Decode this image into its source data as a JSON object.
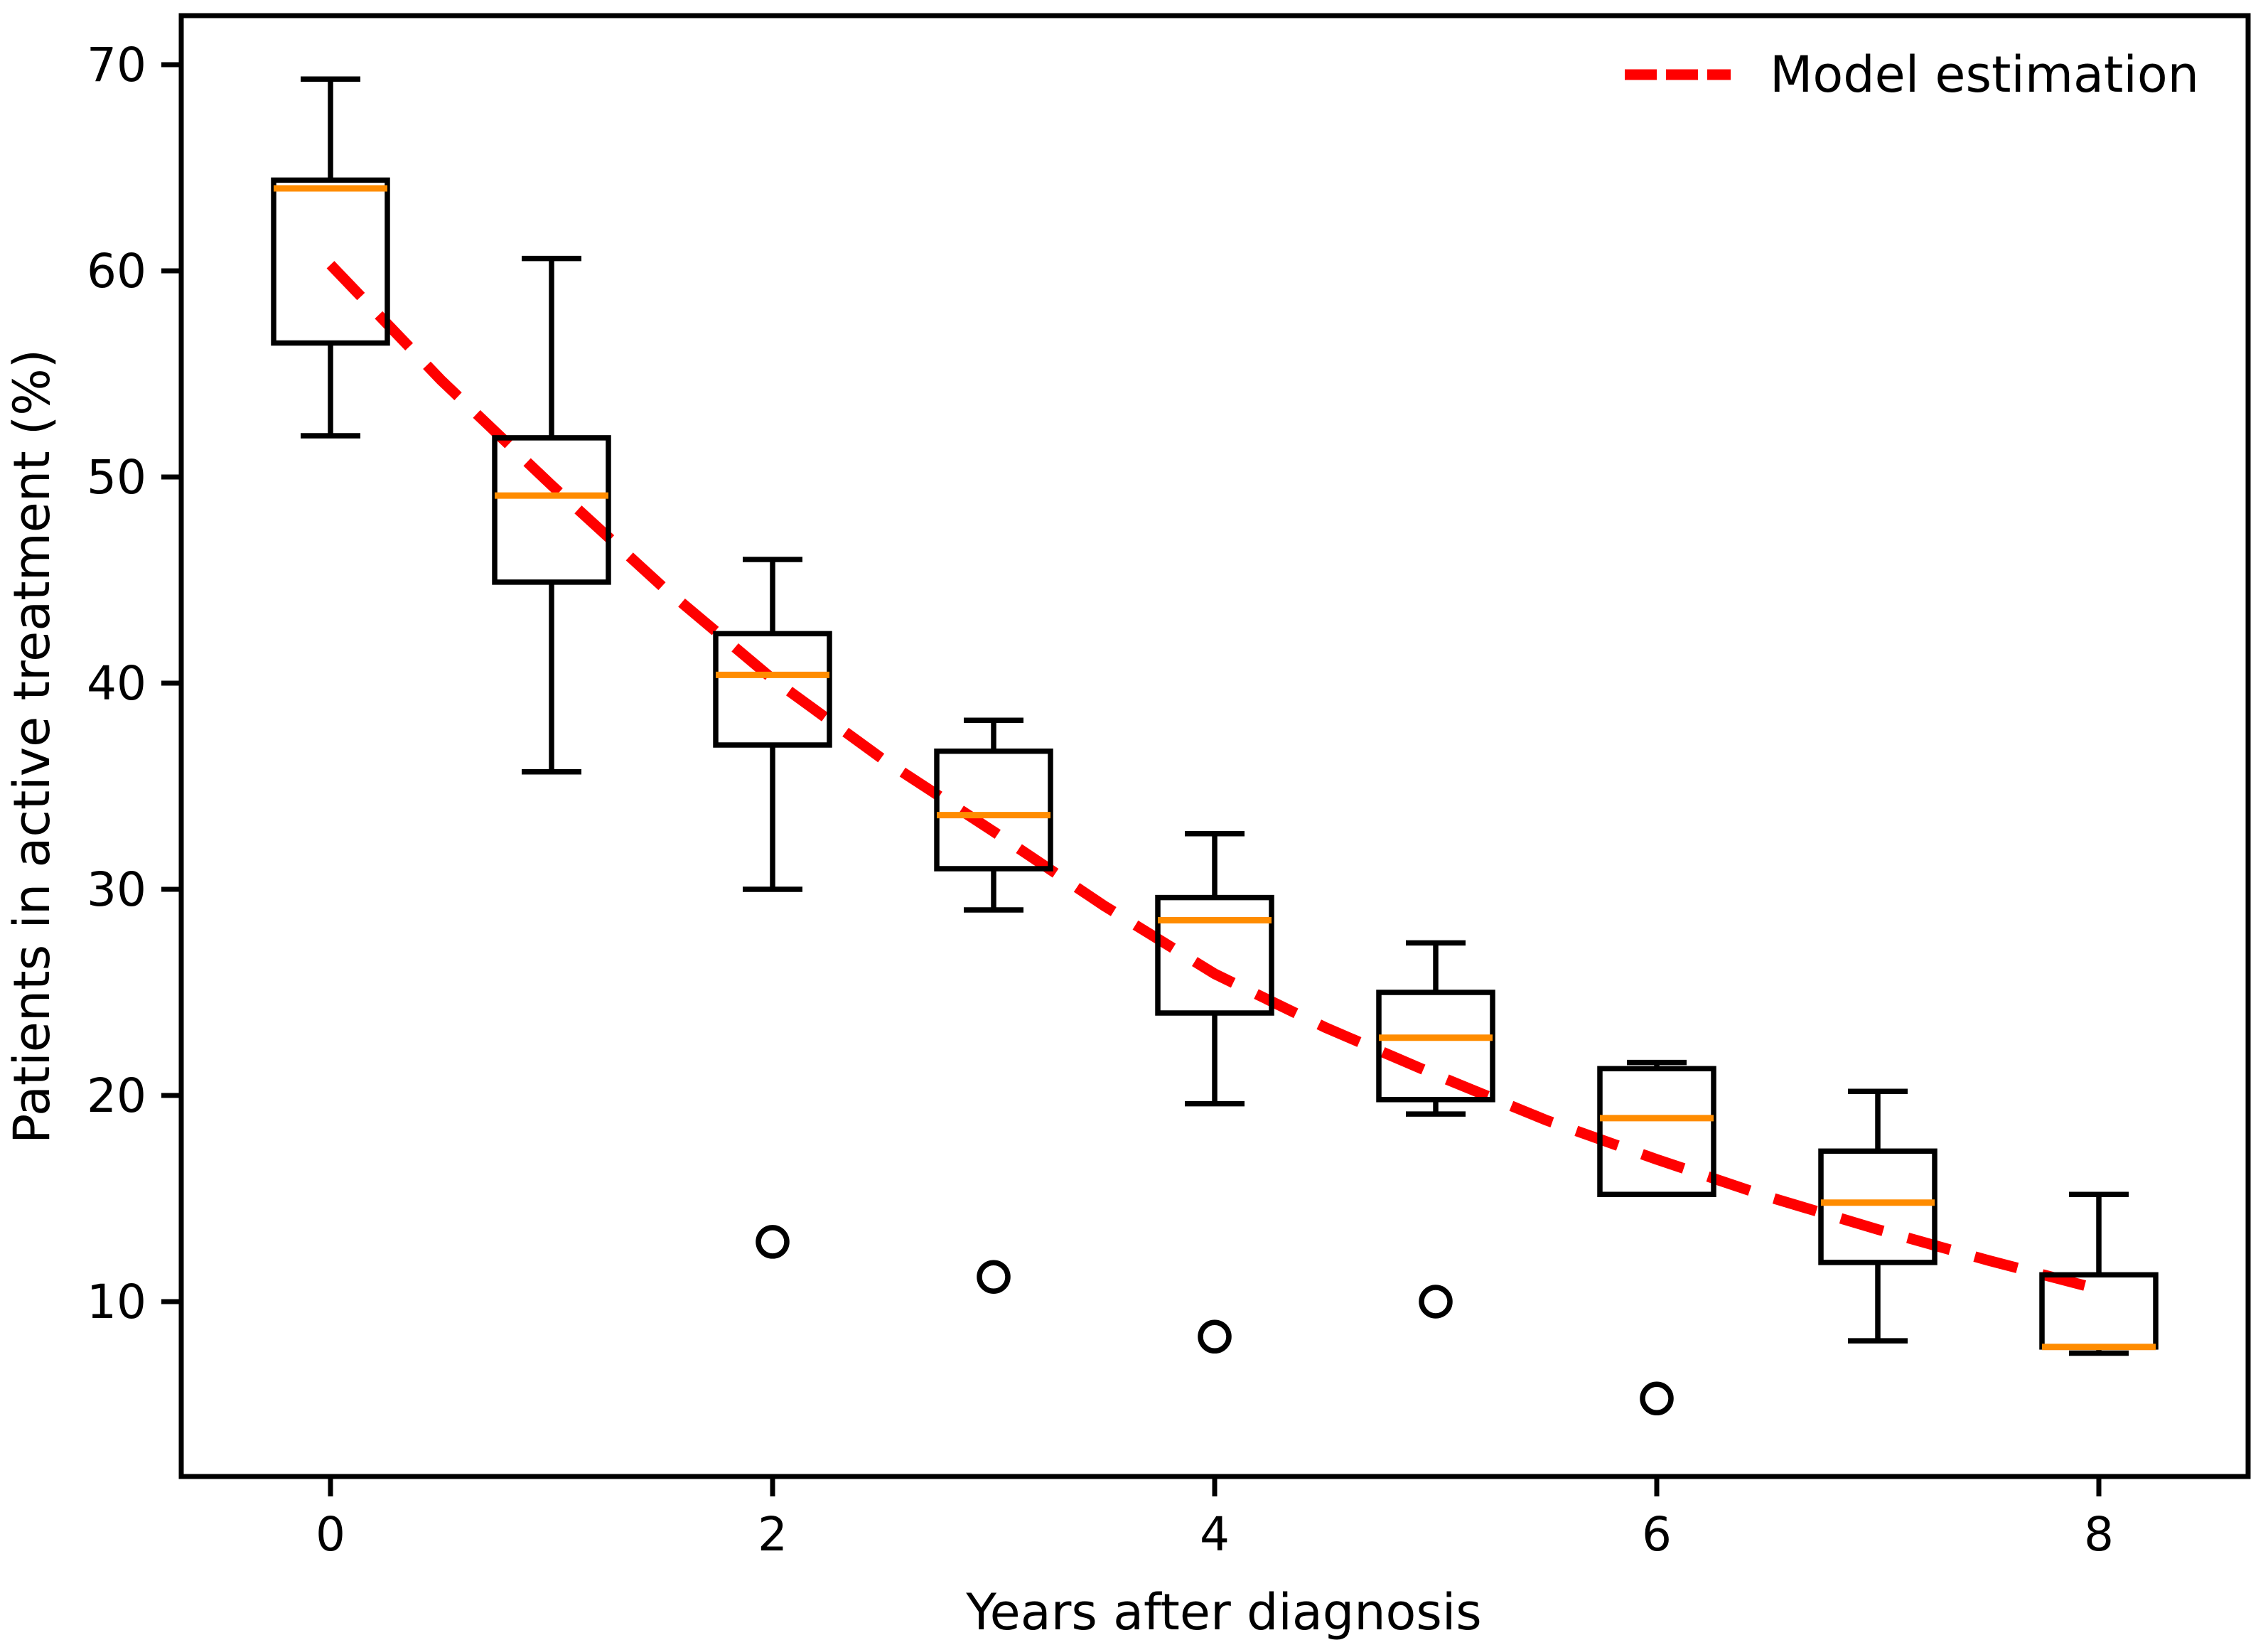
{
  "figure": {
    "background": "#ffffff"
  },
  "chart_data": {
    "type": "boxplot",
    "title": "",
    "xlabel": "Years after diagnosis",
    "ylabel": "Patients in active treatment (%)",
    "x_ticks": [
      0,
      2,
      4,
      6,
      8
    ],
    "y_ticks": [
      10,
      20,
      30,
      40,
      50,
      60,
      70
    ],
    "xlim": [
      -0.68,
      8.68
    ],
    "ylim": [
      1.5,
      72.4
    ],
    "grid": false,
    "boxes": [
      {
        "x": 0,
        "whislo": 52.0,
        "q1": 56.5,
        "median": 64.0,
        "q3": 64.4,
        "whishi": 69.3,
        "outliers": []
      },
      {
        "x": 1,
        "whislo": 35.7,
        "q1": 44.9,
        "median": 49.1,
        "q3": 51.9,
        "whishi": 60.6,
        "outliers": []
      },
      {
        "x": 2,
        "whislo": 30.0,
        "q1": 37.0,
        "median": 40.4,
        "q3": 42.4,
        "whishi": 46.0,
        "outliers": [
          12.9
        ]
      },
      {
        "x": 3,
        "whislo": 29.0,
        "q1": 31.0,
        "median": 33.6,
        "q3": 36.7,
        "whishi": 38.2,
        "outliers": [
          11.2
        ]
      },
      {
        "x": 4,
        "whislo": 19.6,
        "q1": 24.0,
        "median": 28.5,
        "q3": 29.6,
        "whishi": 32.7,
        "outliers": [
          8.3
        ]
      },
      {
        "x": 5,
        "whislo": 19.1,
        "q1": 19.8,
        "median": 22.8,
        "q3": 25.0,
        "whishi": 27.4,
        "outliers": [
          10.0
        ]
      },
      {
        "x": 6,
        "whislo": 15.2,
        "q1": 15.2,
        "median": 18.9,
        "q3": 21.3,
        "whishi": 21.6,
        "outliers": [
          5.3
        ]
      },
      {
        "x": 7,
        "whislo": 8.1,
        "q1": 11.9,
        "median": 14.8,
        "q3": 17.3,
        "whishi": 20.2,
        "outliers": []
      },
      {
        "x": 8,
        "whislo": 7.5,
        "q1": 7.8,
        "median": 7.8,
        "q3": 11.3,
        "whishi": 15.2,
        "outliers": []
      }
    ],
    "model_curve": {
      "name": "Model estimation",
      "x": [
        0,
        0.5,
        1,
        1.5,
        2,
        2.5,
        3,
        3.5,
        4,
        4.5,
        5,
        5.5,
        6,
        6.5,
        7,
        7.5,
        8
      ],
      "y": [
        60.3,
        54.7,
        49.6,
        44.7,
        40.2,
        36.3,
        32.8,
        29.2,
        25.9,
        23.3,
        21.0,
        18.8,
        16.9,
        15.1,
        13.5,
        12.0,
        10.6
      ]
    },
    "legend": {
      "position": "upper right",
      "label": "Model estimation"
    },
    "colors": {
      "box": "#000000",
      "median": "#ff8c00",
      "model": "#ff0000"
    }
  }
}
